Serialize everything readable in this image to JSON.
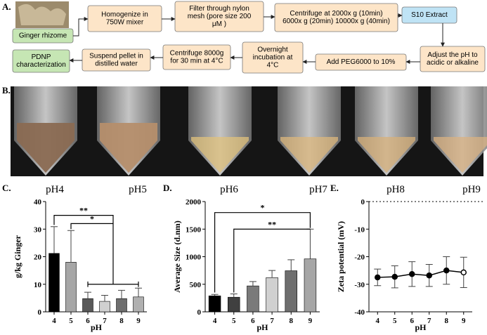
{
  "panels": {
    "a": "A.",
    "b": "B.",
    "c": "C.",
    "d": "D.",
    "e": "E."
  },
  "flowchart": {
    "nodes": [
      {
        "lines": [
          "Ginger rhizome"
        ]
      },
      {
        "lines": [
          "Homogenize in",
          "750W mixer"
        ]
      },
      {
        "lines": [
          "Filter through nylon",
          "mesh (pore size 200",
          "μM )"
        ]
      },
      {
        "lines": [
          "Centrifuge at 2000x g (10min)",
          "6000x g (20min) 10000x g (40min)"
        ]
      },
      {
        "lines": [
          "S10 Extract"
        ]
      },
      {
        "lines": [
          "Adjust the pH to",
          "acidic or alkaline"
        ]
      },
      {
        "lines": [
          "Add PEG6000 to 10%"
        ]
      },
      {
        "lines": [
          "Overnight",
          "incubation at",
          "4°C"
        ]
      },
      {
        "lines": [
          "Centrifuge 8000g",
          "for 30 min at 4°C"
        ]
      },
      {
        "lines": [
          "Suspend pellet in",
          "distilled water"
        ]
      },
      {
        "lines": [
          "PDNP",
          "characterization"
        ]
      }
    ]
  },
  "photo": {
    "labels": [
      "pH4",
      "pH5",
      "pH6",
      "pH7",
      "pH8",
      "pH9"
    ]
  },
  "chart_data": [
    {
      "type": "bar",
      "ylabel": "g/kg Ginger",
      "xlabel": "pH",
      "categories": [
        "4",
        "5",
        "6",
        "7",
        "8",
        "9"
      ],
      "values": [
        21.2,
        18,
        4.8,
        3.8,
        4.8,
        5.4
      ],
      "errors": [
        9.7,
        11.5,
        2.3,
        2.2,
        3,
        3.2
      ],
      "colors": [
        "#000000",
        "#a6a6a6",
        "#595959",
        "#d0d0d0",
        "#6e6e6e",
        "#b0b0b0"
      ],
      "ylim": [
        0,
        40
      ],
      "yticks": [
        0,
        10,
        20,
        30,
        40
      ],
      "annotations": [
        "**",
        "*"
      ]
    },
    {
      "type": "bar",
      "ylabel": "Average Size (d.nm)",
      "xlabel": "pH",
      "categories": [
        "4",
        "5",
        "6",
        "7",
        "8",
        "9"
      ],
      "values": [
        290,
        265,
        470,
        620,
        745,
        960
      ],
      "errors": [
        25,
        60,
        80,
        130,
        200,
        540
      ],
      "colors": [
        "#000000",
        "#404040",
        "#7a7a7a",
        "#d0d0d0",
        "#6e6e6e",
        "#a6a6a6"
      ],
      "ylim": [
        0,
        2000
      ],
      "yticks": [
        0,
        500,
        1000,
        1500,
        2000
      ],
      "annotations": [
        "*",
        "**"
      ]
    },
    {
      "type": "line",
      "ylabel": "Zeta potential (mV)",
      "xlabel": "pH",
      "categories": [
        "4",
        "5",
        "6",
        "7",
        "8",
        "9"
      ],
      "values": [
        -27.5,
        -27.3,
        -26.3,
        -26.8,
        -25,
        -25.7
      ],
      "errors": [
        3,
        4,
        4.5,
        4,
        5,
        5.5
      ],
      "color": "#000000",
      "ylim": [
        -40,
        0
      ],
      "yticks": [
        0,
        -10,
        -20,
        -30,
        -40
      ]
    }
  ]
}
